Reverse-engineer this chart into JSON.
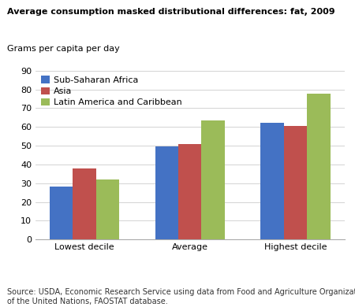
{
  "title": "Average consumption masked distributional differences: fat, 2009",
  "ylabel": "Grams per capita per day",
  "categories": [
    "Lowest decile",
    "Average",
    "Highest decile"
  ],
  "series": [
    {
      "label": "Sub-Saharan Africa",
      "values": [
        28,
        49.5,
        62
      ],
      "color": "#4472C4"
    },
    {
      "label": "Asia",
      "values": [
        38,
        51,
        60.5
      ],
      "color": "#C0504D"
    },
    {
      "label": "Latin America and Caribbean",
      "values": [
        32,
        63.5,
        77.5
      ],
      "color": "#9BBB59"
    }
  ],
  "ylim": [
    0,
    90
  ],
  "yticks": [
    0,
    10,
    20,
    30,
    40,
    50,
    60,
    70,
    80,
    90
  ],
  "source_text": "Source: USDA, Economic Research Service using data from Food and Agriculture Organization\nof the United Nations, FAOSTAT database.",
  "bar_width": 0.22,
  "title_fontsize": 8.0,
  "ylabel_fontsize": 8.0,
  "tick_fontsize": 8.0,
  "legend_fontsize": 8.0,
  "source_fontsize": 7.0,
  "background_color": "#FFFFFF"
}
